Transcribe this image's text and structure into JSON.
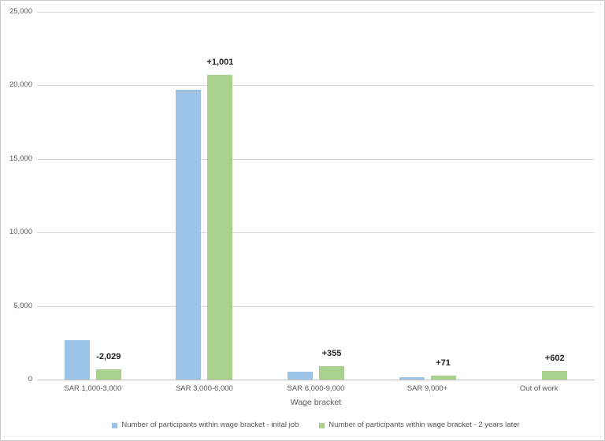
{
  "chart_data": {
    "type": "bar",
    "title": "",
    "categories": [
      "SAR 1,000-3,000",
      "SAR 3,000-6,000",
      "SAR 6,000-9,000",
      "SAR 9,000+",
      "Out of work"
    ],
    "series": [
      {
        "name": "Number of participants within wage bracket - inital job",
        "color": "#9DC3E6",
        "values": [
          2700,
          19700,
          560,
          180,
          0
        ]
      },
      {
        "name": "Number of participants within wage bracket - 2 years later",
        "color": "#A9D18E",
        "values": [
          671,
          20701,
          915,
          251,
          602
        ]
      }
    ],
    "annotations": [
      "-2,029",
      "+1,001",
      "+355",
      "+71",
      "+602"
    ],
    "xlabel": "Wage bracket",
    "ylabel": "",
    "ylim": [
      0,
      25000
    ],
    "yticks": [
      0,
      5000,
      10000,
      15000,
      20000,
      25000
    ],
    "ytick_labels": [
      "0",
      "5,000",
      "10,000",
      "15,000",
      "20,000",
      "25,000"
    ],
    "grid": true,
    "legend_position": "bottom"
  },
  "colors": {
    "series_initial_job": "#9DC3E6",
    "series_two_years_later": "#A9D18E",
    "gridline": "#D9D9D9",
    "axis_line": "#BFBFBF",
    "axis_text": "#595959",
    "annotation_text": "#1F1F1F",
    "frame_border": "#C9C9C9",
    "background": "#FFFFFF"
  }
}
